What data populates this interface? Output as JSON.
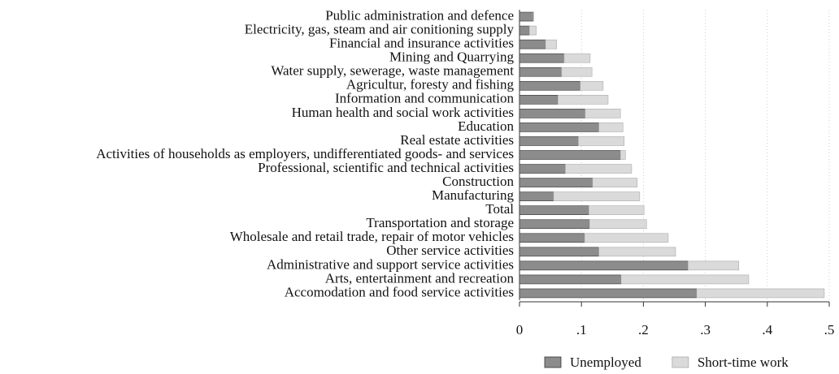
{
  "chart_data": {
    "type": "stacked_barh",
    "categories": [
      "Public administration and defence",
      "Electricity, gas, steam and air conitioning supply",
      "Financial and insurance activities",
      "Mining and Quarrying",
      "Water supply, sewerage, waste management",
      "Agricultur, foresty and fishing",
      "Information and communication",
      "Human health and social work activities",
      "Education",
      "Real estate activities",
      "Activities of households as employers, undifferentiated goods- and services",
      "Professional, scientific and technical activities",
      "Construction",
      "Manufacturing",
      "Total",
      "Transportation and storage",
      "Wholesale and retail trade, repair of motor vehicles",
      "Other service activities",
      "Administrative and support service activities",
      "Arts, entertainment and recreation",
      "Accomodation and food service activities"
    ],
    "series": [
      {
        "name": "Unemployed",
        "color": "#8c8c8c",
        "values": [
          0.022,
          0.016,
          0.042,
          0.072,
          0.068,
          0.098,
          0.062,
          0.106,
          0.128,
          0.095,
          0.163,
          0.074,
          0.118,
          0.055,
          0.112,
          0.113,
          0.105,
          0.128,
          0.272,
          0.164,
          0.286
        ]
      },
      {
        "name": "Short-time work",
        "color": "#dadada",
        "values": [
          0.001,
          0.011,
          0.018,
          0.042,
          0.049,
          0.037,
          0.081,
          0.057,
          0.039,
          0.074,
          0.008,
          0.107,
          0.072,
          0.139,
          0.089,
          0.092,
          0.135,
          0.124,
          0.082,
          0.206,
          0.206
        ]
      }
    ],
    "xlim": [
      0,
      0.5
    ],
    "xticks": [
      {
        "value": 0,
        "label": "0"
      },
      {
        "value": 0.1,
        "label": ".1"
      },
      {
        "value": 0.2,
        "label": ".2"
      },
      {
        "value": 0.3,
        "label": ".3"
      },
      {
        "value": 0.4,
        "label": ".4"
      },
      {
        "value": 0.5,
        "label": ".5"
      }
    ],
    "grid": true,
    "legend": "bottom-right"
  }
}
